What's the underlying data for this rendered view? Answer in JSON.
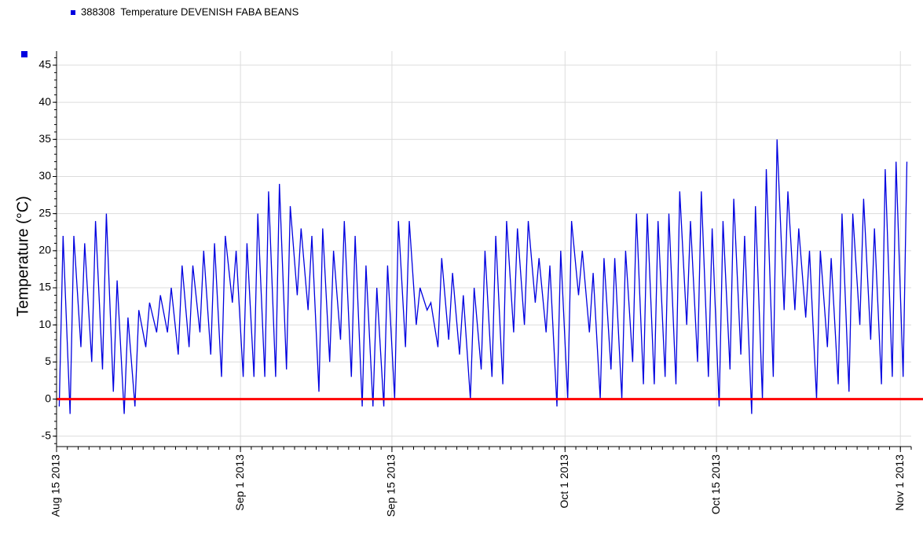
{
  "chart_data": {
    "type": "line",
    "legend": "top-left",
    "ylabel": "Temperature (°C)",
    "grid": true,
    "xlim": [
      "2013-08-15",
      "2013-11-02"
    ],
    "xticks": [
      {
        "value": "2013-08-15",
        "label": "Aug 15 2013"
      },
      {
        "value": "2013-09-01",
        "label": "Sep 1 2013"
      },
      {
        "value": "2013-09-15",
        "label": "Sep 15 2013"
      },
      {
        "value": "2013-10-01",
        "label": "Oct 1 2013"
      },
      {
        "value": "2013-10-15",
        "label": "Oct 15 2013"
      },
      {
        "value": "2013-11-01",
        "label": "Nov 1 2013"
      }
    ],
    "ylim": [
      -6.4,
      46.9
    ],
    "yticks": [
      -5,
      0,
      5,
      10,
      15,
      20,
      25,
      30,
      35,
      40,
      45
    ],
    "reference_line": {
      "value": 0,
      "color": "#ff0000"
    },
    "x": [
      "2013-08-15",
      "2013-08-16",
      "2013-08-17",
      "2013-08-18",
      "2013-08-19",
      "2013-08-20",
      "2013-08-21",
      "2013-08-22",
      "2013-08-23",
      "2013-08-24",
      "2013-08-25",
      "2013-08-26",
      "2013-08-27",
      "2013-08-28",
      "2013-08-29",
      "2013-08-30",
      "2013-08-31",
      "2013-09-01",
      "2013-09-02",
      "2013-09-03",
      "2013-09-04",
      "2013-09-05",
      "2013-09-06",
      "2013-09-07",
      "2013-09-08",
      "2013-09-09",
      "2013-09-10",
      "2013-09-11",
      "2013-09-12",
      "2013-09-13",
      "2013-09-14",
      "2013-09-15",
      "2013-09-16",
      "2013-09-17",
      "2013-09-18",
      "2013-09-19",
      "2013-09-20",
      "2013-09-21",
      "2013-09-22",
      "2013-09-23",
      "2013-09-24",
      "2013-09-25",
      "2013-09-26",
      "2013-09-27",
      "2013-09-28",
      "2013-09-29",
      "2013-09-30",
      "2013-10-01",
      "2013-10-02",
      "2013-10-03",
      "2013-10-04",
      "2013-10-05",
      "2013-10-06",
      "2013-10-07",
      "2013-10-08",
      "2013-10-09",
      "2013-10-10",
      "2013-10-11",
      "2013-10-12",
      "2013-10-13",
      "2013-10-14",
      "2013-10-15",
      "2013-10-16",
      "2013-10-17",
      "2013-10-18",
      "2013-10-19",
      "2013-10-20",
      "2013-10-21",
      "2013-10-22",
      "2013-10-23",
      "2013-10-24",
      "2013-10-25",
      "2013-10-26",
      "2013-10-27",
      "2013-10-28",
      "2013-10-29",
      "2013-10-30",
      "2013-10-31",
      "2013-11-01"
    ],
    "series": [
      {
        "name": "388308  Temperature DEVENISH FABA BEANS",
        "color": "#0000e0",
        "values": [
          [
            -1,
            22
          ],
          [
            -2,
            22
          ],
          [
            7,
            21
          ],
          [
            5,
            24
          ],
          [
            4,
            25
          ],
          [
            1,
            16
          ],
          [
            -2,
            11
          ],
          [
            -1,
            12
          ],
          [
            7,
            13
          ],
          [
            9,
            14
          ],
          [
            9,
            15
          ],
          [
            6,
            18
          ],
          [
            7,
            18
          ],
          [
            9,
            20
          ],
          [
            6,
            21
          ],
          [
            3,
            22
          ],
          [
            13,
            20
          ],
          [
            3,
            21
          ],
          [
            3,
            25
          ],
          [
            3,
            28
          ],
          [
            3,
            29
          ],
          [
            4,
            26
          ],
          [
            14,
            23
          ],
          [
            12,
            22
          ],
          [
            1,
            23
          ],
          [
            5,
            20
          ],
          [
            8,
            24
          ],
          [
            3,
            22
          ],
          [
            -1,
            18
          ],
          [
            -1,
            15
          ],
          [
            -1,
            18
          ],
          [
            0,
            24
          ],
          [
            7,
            24
          ],
          [
            10,
            15
          ],
          [
            12,
            13
          ],
          [
            7,
            19
          ],
          [
            8,
            17
          ],
          [
            6,
            14
          ],
          [
            0,
            15
          ],
          [
            4,
            20
          ],
          [
            3,
            22
          ],
          [
            2,
            24
          ],
          [
            9,
            23
          ],
          [
            10,
            24
          ],
          [
            13,
            19
          ],
          [
            9,
            18
          ],
          [
            -1,
            20
          ],
          [
            0,
            24
          ],
          [
            14,
            20
          ],
          [
            9,
            17
          ],
          [
            0,
            19
          ],
          [
            4,
            19
          ],
          [
            0,
            20
          ],
          [
            5,
            25
          ],
          [
            2,
            25
          ],
          [
            2,
            24
          ],
          [
            3,
            25
          ],
          [
            2,
            28
          ],
          [
            10,
            24
          ],
          [
            5,
            28
          ],
          [
            3,
            23
          ],
          [
            -1,
            24
          ],
          [
            4,
            27
          ],
          [
            6,
            22
          ],
          [
            -2,
            26
          ],
          [
            0,
            31
          ],
          [
            3,
            35
          ],
          [
            12,
            28
          ],
          [
            12,
            23
          ],
          [
            11,
            20
          ],
          [
            0,
            20
          ],
          [
            7,
            19
          ],
          [
            2,
            25
          ],
          [
            1,
            25
          ],
          [
            10,
            27
          ],
          [
            8,
            23
          ],
          [
            2,
            31
          ],
          [
            3,
            32
          ],
          [
            3,
            32
          ]
        ]
      }
    ]
  }
}
